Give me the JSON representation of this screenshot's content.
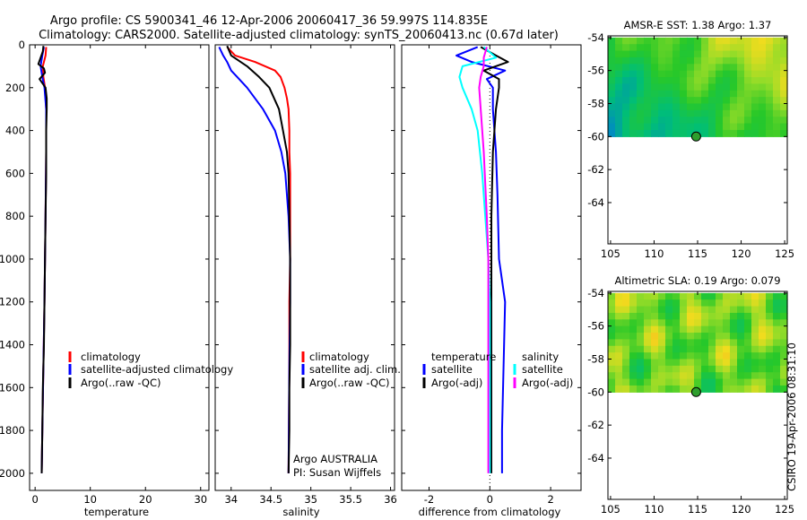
{
  "header": {
    "title_line1": "Argo profile: CS 5900341_46 12-Apr-2006 20060417_36 59.997S 114.835E",
    "title_line2": "Climatology: CARS2000. Satellite-adjusted climatology: synTS_20060413.nc (0.67d later)"
  },
  "colors": {
    "climatology": "#ff0000",
    "satellite": "#0000ff",
    "argo": "#000000",
    "sat_salinity": "#00ffff",
    "argo_salinity": "#ff00ff"
  },
  "chart_data": [
    {
      "type": "line",
      "name": "temperature-profile",
      "xlabel": "temperature",
      "xlim": [
        -1,
        31.5
      ],
      "xticks": [
        0,
        10,
        20,
        30
      ],
      "ylim": [
        2080,
        0
      ],
      "yticks": [
        0,
        200,
        400,
        600,
        800,
        1000,
        1200,
        1400,
        1600,
        1800,
        2000
      ],
      "legend": [
        "climatology",
        "satellite-adjusted climatology",
        "Argo(..raw -QC)"
      ],
      "series": [
        {
          "name": "climatology",
          "color": "#ff0000",
          "depth": [
            10,
            50,
            100,
            150,
            200,
            300,
            500,
            800,
            1000,
            1200,
            1500,
            1800,
            2000
          ],
          "values": [
            2.0,
            1.9,
            1.4,
            1.5,
            1.8,
            2.0,
            2.0,
            1.9,
            1.8,
            1.7,
            1.5,
            1.3,
            1.2
          ]
        },
        {
          "name": "satellite-adjusted climatology",
          "color": "#0000ff",
          "depth": [
            10,
            50,
            100,
            150,
            200,
            300,
            500,
            800,
            1000,
            1200,
            1500,
            1800,
            2000
          ],
          "values": [
            1.6,
            1.3,
            1.0,
            1.3,
            1.7,
            2.0,
            2.0,
            1.9,
            1.8,
            1.7,
            1.5,
            1.3,
            1.2
          ]
        },
        {
          "name": "Argo(..raw -QC)",
          "color": "#000000",
          "depth": [
            5,
            30,
            60,
            90,
            110,
            130,
            160,
            200,
            250,
            300,
            400,
            600,
            800,
            1000,
            1200,
            1400,
            1600,
            1800,
            2000
          ],
          "values": [
            1.5,
            1.4,
            1.0,
            0.6,
            1.6,
            1.8,
            0.8,
            1.9,
            2.1,
            2.1,
            2.0,
            2.0,
            1.9,
            1.8,
            1.7,
            1.6,
            1.4,
            1.3,
            1.2
          ]
        }
      ]
    },
    {
      "type": "line",
      "name": "salinity-profile",
      "xlabel": "salinity",
      "xlim": [
        33.8,
        36.05
      ],
      "xticks": [
        34,
        34.5,
        35,
        35.5,
        36
      ],
      "ylim": [
        2080,
        0
      ],
      "legend": [
        "climatology",
        "satellite adj. clim.",
        "Argo(..raw -QC)"
      ],
      "annotations": [
        "Argo AUSTRALIA",
        "PI: Susan Wijffels"
      ],
      "series": [
        {
          "name": "climatology",
          "color": "#ff0000",
          "depth": [
            10,
            50,
            80,
            120,
            150,
            200,
            250,
            300,
            400,
            500,
            600,
            800,
            1000,
            1200,
            1500,
            2000
          ],
          "values": [
            33.95,
            34.05,
            34.3,
            34.55,
            34.62,
            34.67,
            34.7,
            34.72,
            34.73,
            34.73,
            34.74,
            34.74,
            34.74,
            34.73,
            34.73,
            34.72
          ]
        },
        {
          "name": "satellite adj. clim.",
          "color": "#0000ff",
          "depth": [
            10,
            50,
            80,
            120,
            160,
            200,
            300,
            400,
            500,
            600,
            800,
            1000,
            1200,
            1500,
            2000
          ],
          "values": [
            33.85,
            33.9,
            33.95,
            34.0,
            34.1,
            34.2,
            34.4,
            34.55,
            34.63,
            34.68,
            34.72,
            34.74,
            34.74,
            34.73,
            34.72
          ]
        },
        {
          "name": "Argo(..raw -QC)",
          "color": "#000000",
          "depth": [
            5,
            50,
            100,
            150,
            200,
            300,
            400,
            500,
            600,
            800,
            1000,
            1200,
            1400,
            1600,
            1800,
            2000
          ],
          "values": [
            33.95,
            34.0,
            34.2,
            34.35,
            34.48,
            34.6,
            34.65,
            34.7,
            34.72,
            34.73,
            34.74,
            34.74,
            34.74,
            34.73,
            34.73,
            34.72
          ]
        }
      ]
    },
    {
      "type": "line",
      "name": "difference-profile",
      "xlabel": "difference from climatology",
      "xlim": [
        -2.9,
        3.0
      ],
      "xticks": [
        -2,
        0,
        2
      ],
      "ylim": [
        2080,
        0
      ],
      "legend_temperature": [
        "temperature",
        "satellite",
        "Argo(-adj)"
      ],
      "legend_salinity": [
        "salinity",
        "satellite",
        "Argo(-adj)"
      ],
      "series": [
        {
          "name": "temperature satellite",
          "color": "#0000ff",
          "depth": [
            10,
            50,
            80,
            120,
            160,
            200,
            300,
            500,
            700,
            1000,
            1200,
            1500,
            1800,
            2000
          ],
          "values": [
            -0.4,
            -1.1,
            -0.6,
            0.5,
            -0.1,
            0.1,
            0.1,
            0.2,
            0.25,
            0.3,
            0.5,
            0.45,
            0.4,
            0.4
          ]
        },
        {
          "name": "temperature Argo(-adj)",
          "color": "#000000",
          "depth": [
            10,
            50,
            80,
            120,
            160,
            200,
            300,
            500,
            800,
            1000,
            1200,
            1500,
            1800,
            2000
          ],
          "values": [
            -0.3,
            0.2,
            0.6,
            -0.2,
            0.3,
            0.3,
            0.2,
            0.1,
            0.05,
            0.05,
            0.05,
            0.05,
            0.05,
            0.05
          ]
        },
        {
          "name": "salinity satellite",
          "color": "#00ffff",
          "depth": [
            10,
            60,
            100,
            150,
            200,
            300,
            400,
            600,
            800,
            1000,
            1200,
            1500,
            2000
          ],
          "values": [
            -0.2,
            0.2,
            -0.9,
            -1.0,
            -0.9,
            -0.6,
            -0.4,
            -0.25,
            -0.15,
            -0.05,
            0.0,
            0.0,
            0.0
          ]
        },
        {
          "name": "salinity Argo(-adj)",
          "color": "#ff00ff",
          "depth": [
            10,
            60,
            100,
            150,
            200,
            300,
            500,
            800,
            1000,
            1200,
            1500,
            2000
          ],
          "values": [
            -0.1,
            -0.2,
            -0.2,
            -0.3,
            -0.35,
            -0.3,
            -0.2,
            -0.1,
            -0.05,
            -0.05,
            -0.05,
            -0.05
          ]
        }
      ]
    },
    {
      "type": "heatmap",
      "name": "sst-map",
      "title": "AMSR-E SST: 1.38 Argo: 1.37",
      "xlim": [
        104.7,
        125.3
      ],
      "xticks": [
        105,
        110,
        115,
        120,
        125
      ],
      "ylim": [
        -66.5,
        -53.9
      ],
      "yticks": [
        -54,
        -56,
        -58,
        -60,
        -62,
        -64
      ],
      "data_extent_lat": [
        -60,
        -54
      ],
      "argo_point": {
        "lon": 114.835,
        "lat": -59.997
      }
    },
    {
      "type": "heatmap",
      "name": "sla-map",
      "title": "Altimetric SLA: 0.19 Argo: 0.079",
      "xlim": [
        104.7,
        125.3
      ],
      "xticks": [
        105,
        110,
        115,
        120,
        125
      ],
      "ylim": [
        -66.5,
        -53.9
      ],
      "yticks": [
        -54,
        -56,
        -58,
        -60,
        -62,
        -64
      ],
      "data_extent_lat": [
        -60,
        -54
      ],
      "argo_point": {
        "lon": 114.835,
        "lat": -59.997
      }
    }
  ],
  "footer": {
    "stamp": "CSIRO 19-Apr-2006 08:31:10"
  }
}
